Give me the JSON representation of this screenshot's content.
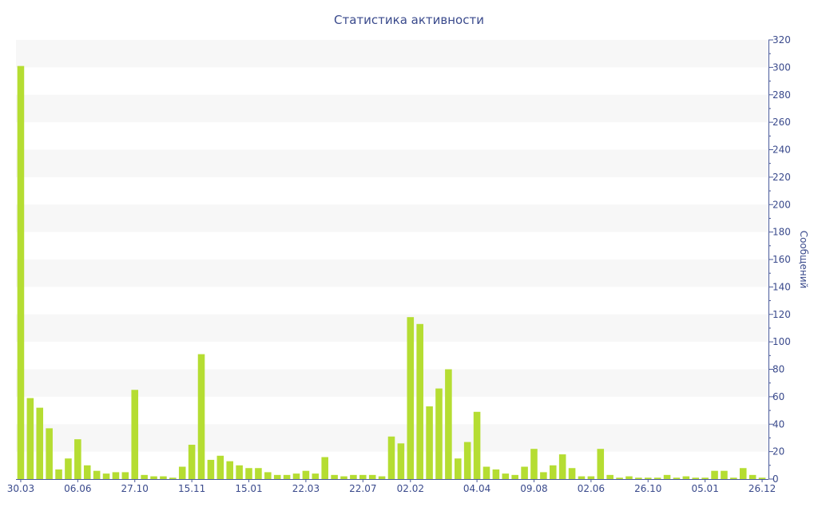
{
  "chart_data": {
    "type": "bar",
    "title": "Статистика активности",
    "ylabel": "Сообщений",
    "xlabel": "",
    "ylim": [
      0,
      320
    ],
    "y_ticks": [
      0,
      20,
      40,
      60,
      80,
      100,
      120,
      140,
      160,
      180,
      200,
      220,
      240,
      260,
      280,
      300,
      320
    ],
    "y_axis_side": "right",
    "grid": "alternating horizontal bands",
    "x_tick_labels": [
      "30.03",
      "06.06",
      "27.10",
      "15.11",
      "15.01",
      "22.03",
      "22.07",
      "02.02",
      "04.04",
      "09.08",
      "02.06",
      "26.10",
      "05.01",
      "26.12"
    ],
    "x_tick_bar_index": [
      0,
      6,
      12,
      18,
      24,
      30,
      36,
      41,
      48,
      54,
      60,
      66,
      72,
      78
    ],
    "values": [
      301,
      59,
      52,
      37,
      7,
      15,
      29,
      10,
      6,
      4,
      5,
      5,
      65,
      3,
      2,
      2,
      1,
      9,
      25,
      91,
      14,
      17,
      13,
      10,
      8,
      8,
      5,
      3,
      3,
      4,
      6,
      4,
      16,
      3,
      2,
      3,
      3,
      3,
      2,
      31,
      26,
      118,
      113,
      53,
      66,
      80,
      15,
      27,
      49,
      9,
      7,
      4,
      3,
      9,
      22,
      5,
      10,
      18,
      8,
      2,
      2,
      22,
      3,
      1,
      2,
      1,
      1,
      1,
      3,
      1,
      2,
      1,
      1,
      6,
      6,
      1,
      8,
      3,
      1
    ],
    "colors": {
      "bar": "#b5dd32",
      "band": "#f7f7f7",
      "axis": "#4a5a9a",
      "text": "#3a4a8c"
    }
  }
}
